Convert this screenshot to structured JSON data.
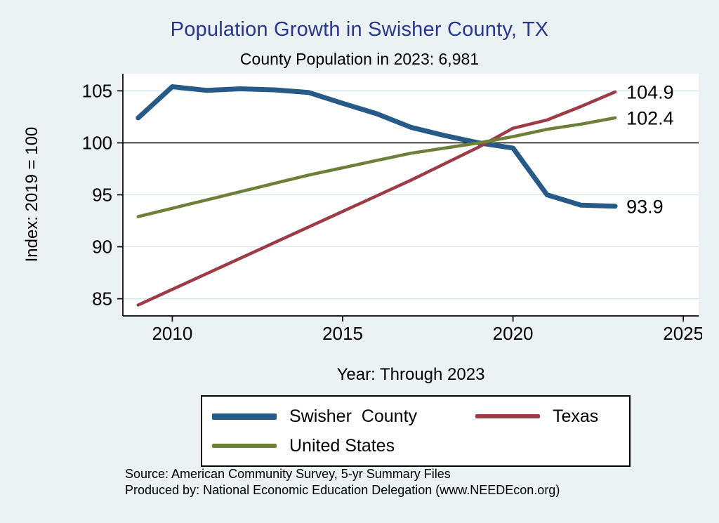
{
  "title": "Population Growth in Swisher County, TX",
  "subtitle": "County Population in 2023: 6,981",
  "colors": {
    "background": "#eaf2f3",
    "plot_bg": "#ffffff",
    "grid": "#d3e3ee",
    "axis": "#000000",
    "title": "#283593",
    "swisher": "#265a87",
    "texas": "#9d3b46",
    "us": "#6e7f38"
  },
  "chart_data": {
    "type": "line",
    "title": "Population Growth in Swisher County, TX",
    "subtitle": "County Population in 2023: 6,981",
    "xlabel": "Year: Through 2023",
    "ylabel": "Index: 2019 = 100",
    "x": [
      2009,
      2010,
      2011,
      2012,
      2013,
      2014,
      2015,
      2016,
      2017,
      2018,
      2019,
      2020,
      2021,
      2022,
      2023
    ],
    "series": [
      {
        "name": "Swisher  County",
        "color_key": "swisher",
        "line_width": 7,
        "end_label": "93.9",
        "values": [
          102.4,
          105.4,
          105.05,
          105.2,
          105.1,
          104.85,
          103.8,
          102.8,
          101.5,
          100.7,
          100.0,
          99.5,
          95.0,
          94.0,
          93.9
        ]
      },
      {
        "name": "Texas",
        "color_key": "texas",
        "line_width": 4.5,
        "end_label": "104.9",
        "values": [
          84.4,
          85.9,
          87.4,
          88.9,
          90.4,
          91.9,
          93.4,
          94.9,
          96.4,
          98.0,
          99.6,
          101.4,
          102.2,
          103.5,
          104.9
        ]
      },
      {
        "name": "United States",
        "color_key": "us",
        "line_width": 4.5,
        "end_label": "102.4",
        "values": [
          92.9,
          93.7,
          94.5,
          95.3,
          96.1,
          96.9,
          97.6,
          98.3,
          99.0,
          99.5,
          100.0,
          100.6,
          101.3,
          101.8,
          102.4
        ]
      }
    ],
    "x_ticks": [
      2010,
      2015,
      2020,
      2025
    ],
    "y_ticks": [
      85,
      90,
      95,
      100,
      105
    ],
    "x_domain": [
      2008.55,
      2025.45
    ],
    "y_domain": [
      83.35,
      106.65
    ],
    "ref_line": 100,
    "grid": "horizontal",
    "legend_position": "bottom"
  },
  "notes": [
    "Source: American Community Survey, 5-yr Summary Files",
    "Produced by: National Economic Education Delegation (www.NEEDEcon.org)"
  ]
}
